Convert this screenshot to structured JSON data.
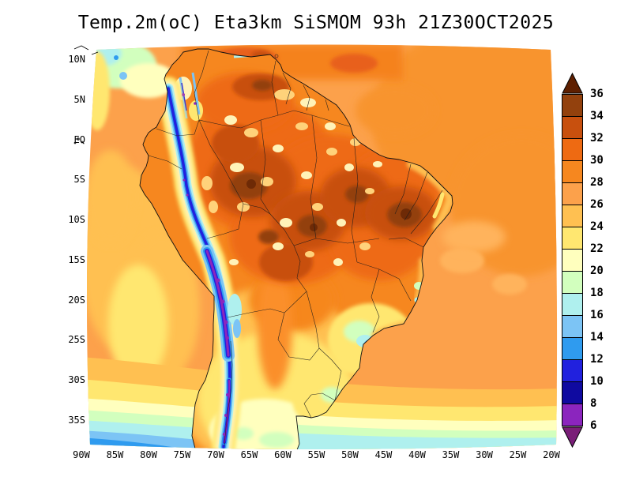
{
  "title": "Temp.2m(oC) Eta3km SiSMOM 93h 21Z30OCT2025",
  "axes": {
    "lat_ticks": [
      "10N",
      "5N",
      "EQ",
      "5S",
      "10S",
      "15S",
      "20S",
      "25S",
      "30S",
      "35S"
    ],
    "lon_ticks": [
      "90W",
      "85W",
      "80W",
      "75W",
      "70W",
      "65W",
      "60W",
      "55W",
      "50W",
      "45W",
      "40W",
      "35W",
      "30W",
      "25W",
      "20W"
    ]
  },
  "colorbar": {
    "unit": "oC",
    "tick_labels": [
      "36",
      "34",
      "32",
      "30",
      "28",
      "26",
      "24",
      "22",
      "20",
      "18",
      "16",
      "14",
      "12",
      "10",
      "8",
      "6"
    ],
    "box_colors_top_to_bottom": [
      "#93410D",
      "#C8500E",
      "#EE6A12",
      "#F6871F",
      "#FCA14B",
      "#FFC051",
      "#FFE770",
      "#FFFFBE",
      "#D2FFBE",
      "#AFF0EE",
      "#7CC4F5",
      "#2F9BEF",
      "#2121DE",
      "#0F0AA0",
      "#8B25BE"
    ],
    "arrow_top_color": "#5E1F00",
    "arrow_bottom_color": "#7A1E78"
  }
}
